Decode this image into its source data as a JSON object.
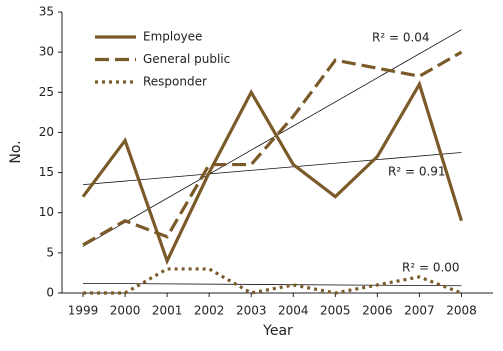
{
  "chart_data": {
    "type": "line",
    "x_label": "Year",
    "y_label": "No.",
    "x": [
      1999,
      2000,
      2001,
      2002,
      2003,
      2004,
      2005,
      2006,
      2007,
      2008
    ],
    "series": [
      {
        "name": "Employee",
        "color": "#7b5a2a",
        "style": "solid",
        "values": [
          12,
          19,
          4,
          15,
          25,
          16,
          12,
          17,
          26,
          9
        ]
      },
      {
        "name": "General public",
        "color": "#7b5a2a",
        "style": "dashed",
        "values": [
          6,
          9,
          7,
          16,
          16,
          22,
          29,
          28,
          27,
          30
        ]
      },
      {
        "name": "Responder",
        "color": "#7b5a2a",
        "style": "dotted",
        "values": [
          0,
          0,
          3,
          3,
          0,
          1,
          0,
          1,
          2,
          0
        ]
      }
    ],
    "trendlines": [
      {
        "label": "R² = 0.04",
        "x": [
          1999,
          2008
        ],
        "values": [
          13.5,
          17.5
        ]
      },
      {
        "label": "R² = 0.91",
        "x": [
          1999,
          2008
        ],
        "values": [
          5.8,
          32.8
        ]
      },
      {
        "label": "R² = 0.00",
        "x": [
          1999,
          2008
        ],
        "values": [
          1.2,
          0.9
        ]
      }
    ],
    "xlim": [
      1998.5,
      2008.75
    ],
    "ylim": [
      0,
      35
    ],
    "xticks": [
      1999,
      2000,
      2001,
      2002,
      2003,
      2004,
      2005,
      2006,
      2007,
      2008
    ],
    "yticks": [
      0,
      5,
      10,
      15,
      20,
      25,
      30,
      35
    ],
    "legend": "top-left"
  }
}
